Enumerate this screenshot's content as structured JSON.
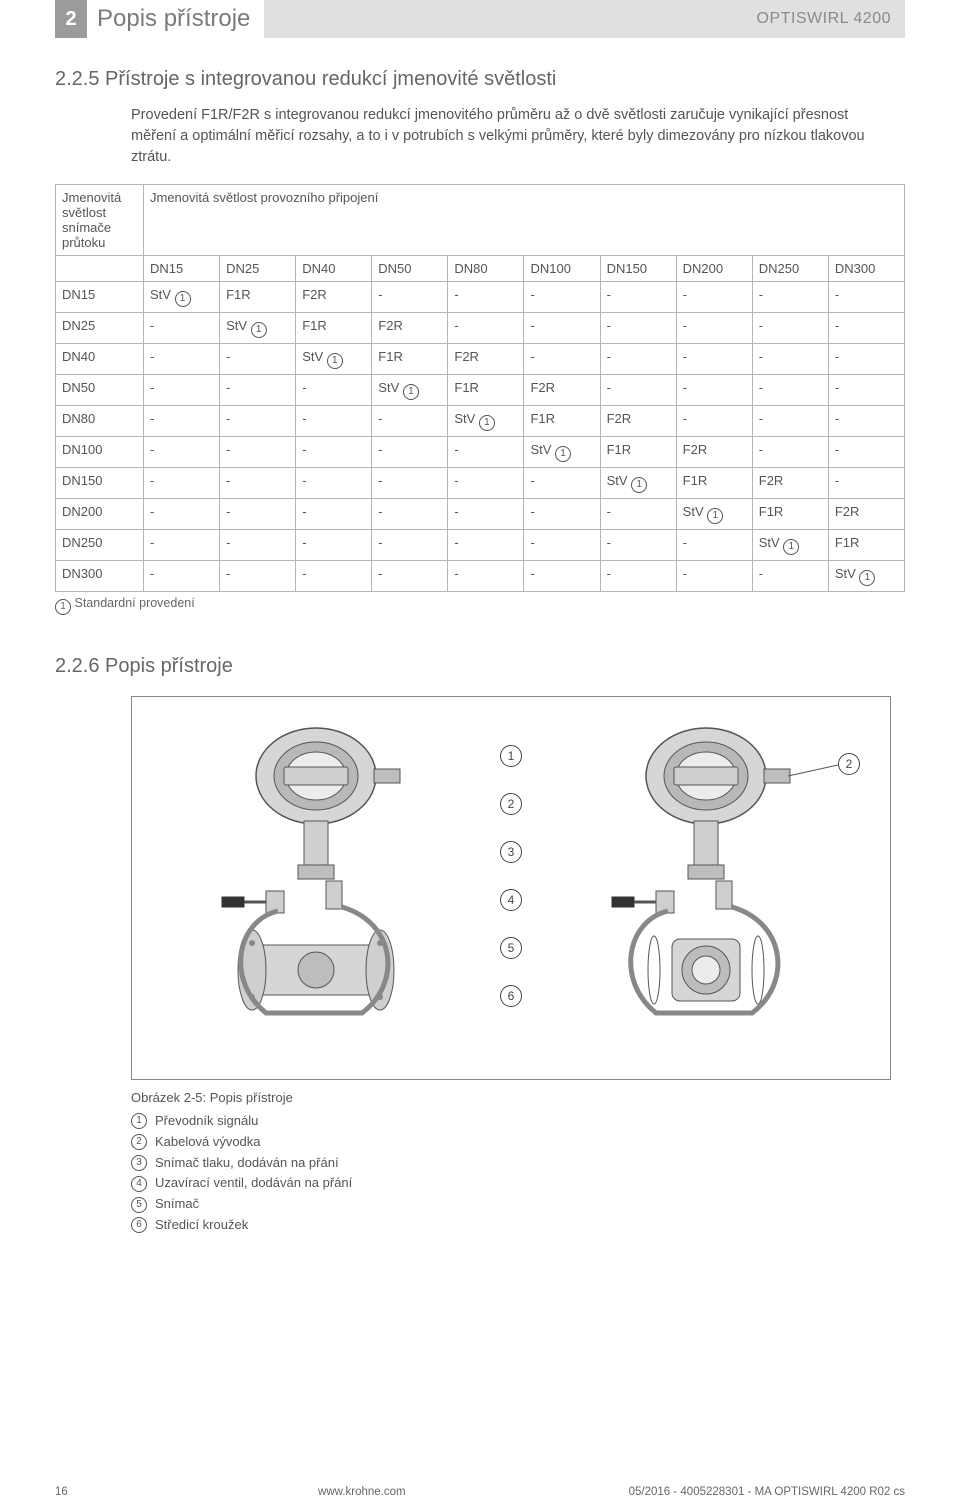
{
  "header": {
    "section_num": "2",
    "section_title": "Popis přístroje",
    "product": "OPTISWIRL 4200"
  },
  "section1": {
    "num_title": "2.2.5  Přístroje s integrovanou redukcí jmenovité světlosti",
    "paragraph": "Provedení F1R/F2R s integrovanou redukcí jmenovitého průměru až o dvě světlosti zaručuje vynikající přesnost měření a optimální měřicí rozsahy, a to i v potrubích s velkými průměry, které byly dimezovány pro nízkou tlakovou ztrátu."
  },
  "table": {
    "row_hdr_label": "Jmenovitá světlost snímače průtoku",
    "col_span_label": "Jmenovitá světlost provozního připojení",
    "columns": [
      "DN15",
      "DN25",
      "DN40",
      "DN50",
      "DN80",
      "DN100",
      "DN150",
      "DN200",
      "DN250",
      "DN300"
    ],
    "rows": [
      {
        "label": "DN15",
        "cells": [
          "StV ①",
          "F1R",
          "F2R",
          "-",
          "-",
          "-",
          "-",
          "-",
          "-",
          "-"
        ]
      },
      {
        "label": "DN25",
        "cells": [
          "-",
          "StV ①",
          "F1R",
          "F2R",
          "-",
          "-",
          "-",
          "-",
          "-",
          "-"
        ]
      },
      {
        "label": "DN40",
        "cells": [
          "-",
          "-",
          "StV ①",
          "F1R",
          "F2R",
          "-",
          "-",
          "-",
          "-",
          "-"
        ]
      },
      {
        "label": "DN50",
        "cells": [
          "-",
          "-",
          "-",
          "StV ①",
          "F1R",
          "F2R",
          "-",
          "-",
          "-",
          "-"
        ]
      },
      {
        "label": "DN80",
        "cells": [
          "-",
          "-",
          "-",
          "-",
          "StV ①",
          "F1R",
          "F2R",
          "-",
          "-",
          "-"
        ]
      },
      {
        "label": "DN100",
        "cells": [
          "-",
          "-",
          "-",
          "-",
          "-",
          "StV ①",
          "F1R",
          "F2R",
          "-",
          "-"
        ]
      },
      {
        "label": "DN150",
        "cells": [
          "-",
          "-",
          "-",
          "-",
          "-",
          "-",
          "StV ①",
          "F1R",
          "F2R",
          "-"
        ]
      },
      {
        "label": "DN200",
        "cells": [
          "-",
          "-",
          "-",
          "-",
          "-",
          "-",
          "-",
          "StV ①",
          "F1R",
          "F2R"
        ]
      },
      {
        "label": "DN250",
        "cells": [
          "-",
          "-",
          "-",
          "-",
          "-",
          "-",
          "-",
          "-",
          "StV ①",
          "F1R"
        ]
      },
      {
        "label": "DN300",
        "cells": [
          "-",
          "-",
          "-",
          "-",
          "-",
          "-",
          "-",
          "-",
          "-",
          "StV ①"
        ]
      }
    ],
    "footnote_num": "1",
    "footnote_text": "Standardní provedení"
  },
  "section2": {
    "num_title": "2.2.6  Popis přístroje"
  },
  "figure": {
    "callouts": [
      "1",
      "2",
      "3",
      "4",
      "5",
      "6"
    ],
    "caption": "Obrázek 2-5: Popis přístroje",
    "legend": [
      {
        "n": "1",
        "t": "Převodník signálu"
      },
      {
        "n": "2",
        "t": "Kabelová vývodka"
      },
      {
        "n": "3",
        "t": "Snímač tlaku, dodáván na přání"
      },
      {
        "n": "4",
        "t": "Uzavírací ventil, dodáván na přání"
      },
      {
        "n": "5",
        "t": "Snímač"
      },
      {
        "n": "6",
        "t": "Středicí kroužek"
      }
    ]
  },
  "footer": {
    "page": "16",
    "url": "www.krohne.com",
    "doc": "05/2016 - 4005228301 - MA OPTISWIRL 4200 R02 cs"
  },
  "colors": {
    "header_box_bg": "#9b9b9b",
    "header_strip_bg": "#e0e0e0",
    "text_main": "#555555",
    "border": "#b5b5b5"
  }
}
